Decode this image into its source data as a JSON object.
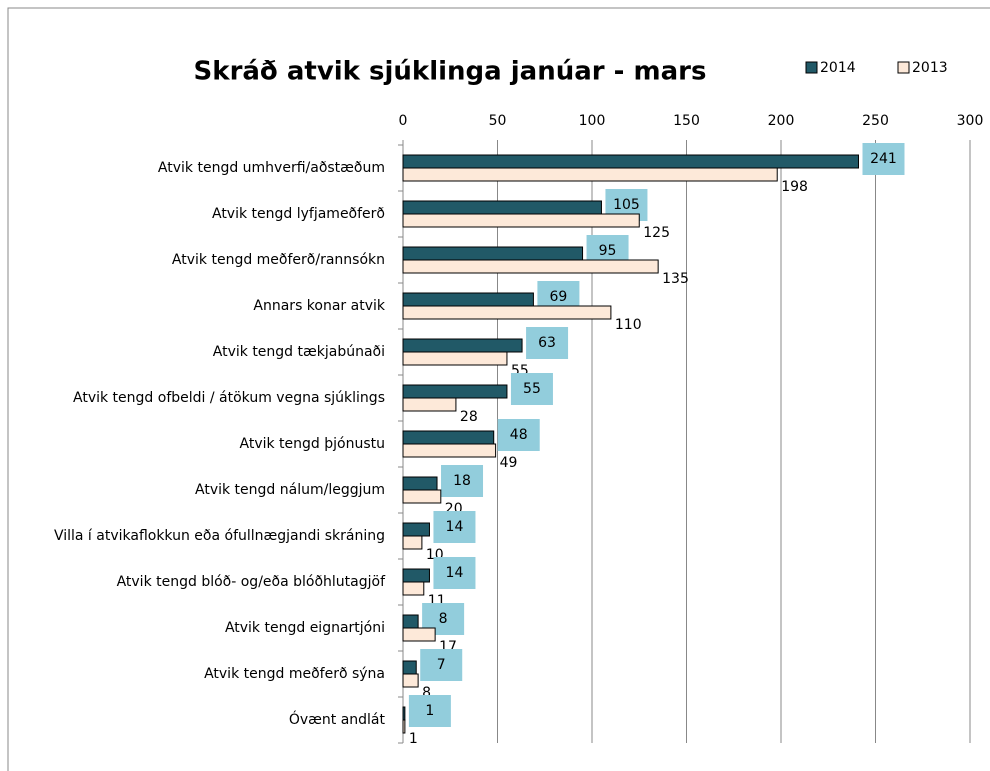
{
  "chart_data": {
    "type": "bar",
    "orientation": "horizontal",
    "title": "Skráð atvik sjúklinga janúar - mars",
    "categories": [
      "Atvik tengd umhverfi/aðstæðum",
      "Atvik tengd lyfjameðferð",
      "Atvik tengd meðferð/rannsókn",
      "Annars konar atvik",
      "Atvik tengd tækjabúnaði",
      "Atvik tengd ofbeldi / átökum vegna sjúklings",
      "Atvik tengd þjónustu",
      "Atvik tengd nálum/leggjum",
      "Villa í atvikaflokkun eða ófullnægjandi skráning",
      "Atvik tengd blóð- og/eða blóðhlutagjöf",
      "Atvik tengd eignartjóni",
      "Atvik tengd meðferð sýna",
      "Óvænt andlát"
    ],
    "series": [
      {
        "name": "2014",
        "color": "#215967",
        "values": [
          241,
          105,
          95,
          69,
          63,
          55,
          48,
          18,
          14,
          14,
          8,
          7,
          1
        ]
      },
      {
        "name": "2013",
        "color": "#fde9d9",
        "values": [
          198,
          125,
          135,
          110,
          55,
          28,
          49,
          20,
          10,
          11,
          17,
          8,
          1
        ]
      }
    ],
    "xlim": [
      0,
      300
    ],
    "xticks": [
      0,
      50,
      100,
      150,
      200,
      250,
      300
    ],
    "grid": true,
    "legend": "top-right"
  }
}
